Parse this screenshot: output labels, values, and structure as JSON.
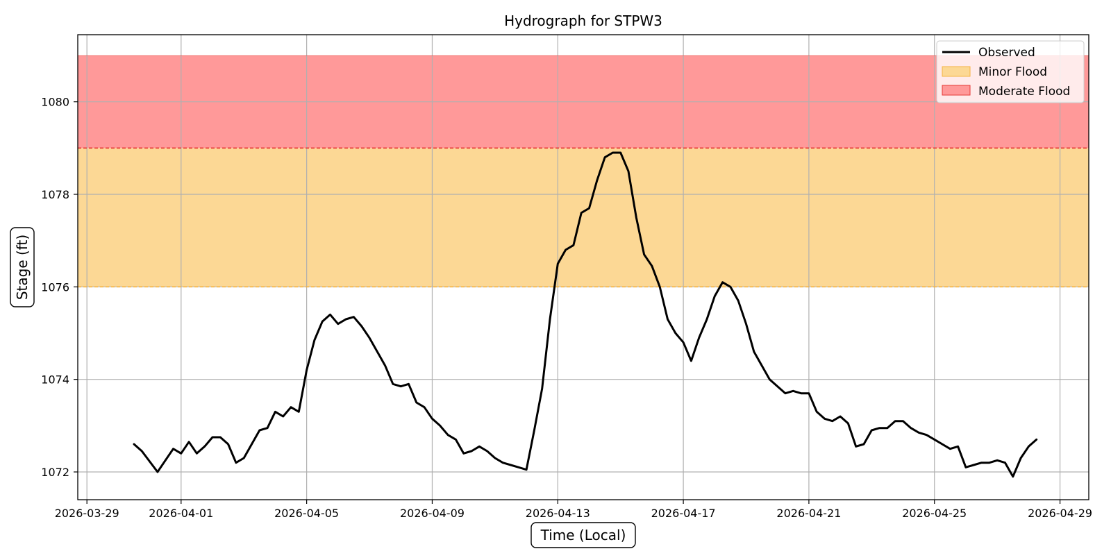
{
  "chart_data": {
    "type": "line",
    "title": "Hydrograph for STPW3",
    "xlabel": "Time (Local)",
    "ylabel": "Stage (ft)",
    "x_axis": "date",
    "xlim": [
      "2026-03-28T17:00",
      "2026-04-29T22:00"
    ],
    "ylim": [
      1071.4,
      1081.45
    ],
    "x_ticks": [
      "2026-03-29",
      "2026-04-01",
      "2026-04-05",
      "2026-04-09",
      "2026-04-13",
      "2026-04-17",
      "2026-04-21",
      "2026-04-25",
      "2026-04-29"
    ],
    "y_ticks": [
      "1072",
      "1074",
      "1076",
      "1078",
      "1080"
    ],
    "grid": true,
    "legend": {
      "position": "top-right",
      "entries": [
        "Observed",
        "Minor Flood",
        "Moderate Flood"
      ]
    },
    "bands": [
      {
        "name": "Minor Flood",
        "from": 1076,
        "to": 1079,
        "fill": "#fcd895",
        "edge": "#f5b342"
      },
      {
        "name": "Moderate Flood",
        "from": 1079,
        "to": 1081,
        "fill": "#ff9999",
        "edge": "#e53935"
      }
    ],
    "series": [
      {
        "name": "Observed",
        "color": "#000000",
        "x": [
          "2026-03-30T12:00",
          "2026-03-30T18:00",
          "2026-03-31T06:00",
          "2026-03-31T12:00",
          "2026-03-31T18:00",
          "2026-04-01T00:00",
          "2026-04-01T06:00",
          "2026-04-01T12:00",
          "2026-04-01T18:00",
          "2026-04-02T00:00",
          "2026-04-02T06:00",
          "2026-04-02T12:00",
          "2026-04-02T18:00",
          "2026-04-03T00:00",
          "2026-04-03T06:00",
          "2026-04-03T12:00",
          "2026-04-03T18:00",
          "2026-04-04T00:00",
          "2026-04-04T06:00",
          "2026-04-04T12:00",
          "2026-04-04T18:00",
          "2026-04-05T00:00",
          "2026-04-05T06:00",
          "2026-04-05T12:00",
          "2026-04-05T18:00",
          "2026-04-06T00:00",
          "2026-04-06T06:00",
          "2026-04-06T12:00",
          "2026-04-06T18:00",
          "2026-04-07T00:00",
          "2026-04-07T06:00",
          "2026-04-07T12:00",
          "2026-04-07T18:00",
          "2026-04-08T00:00",
          "2026-04-08T06:00",
          "2026-04-08T12:00",
          "2026-04-08T18:00",
          "2026-04-09T00:00",
          "2026-04-09T06:00",
          "2026-04-09T12:00",
          "2026-04-09T18:00",
          "2026-04-10T00:00",
          "2026-04-10T06:00",
          "2026-04-10T12:00",
          "2026-04-10T18:00",
          "2026-04-11T00:00",
          "2026-04-11T06:00",
          "2026-04-11T12:00",
          "2026-04-11T18:00",
          "2026-04-12T00:00",
          "2026-04-12T06:00",
          "2026-04-12T12:00",
          "2026-04-12T18:00",
          "2026-04-13T00:00",
          "2026-04-13T06:00",
          "2026-04-13T12:00",
          "2026-04-13T18:00",
          "2026-04-14T00:00",
          "2026-04-14T06:00",
          "2026-04-14T12:00",
          "2026-04-14T18:00",
          "2026-04-15T00:00",
          "2026-04-15T06:00",
          "2026-04-15T12:00",
          "2026-04-15T18:00",
          "2026-04-16T00:00",
          "2026-04-16T06:00",
          "2026-04-16T12:00",
          "2026-04-16T18:00",
          "2026-04-17T00:00",
          "2026-04-17T06:00",
          "2026-04-17T12:00",
          "2026-04-17T18:00",
          "2026-04-18T00:00",
          "2026-04-18T06:00",
          "2026-04-18T12:00",
          "2026-04-18T18:00",
          "2026-04-19T00:00",
          "2026-04-19T06:00",
          "2026-04-19T12:00",
          "2026-04-19T18:00",
          "2026-04-20T00:00",
          "2026-04-20T06:00",
          "2026-04-20T12:00",
          "2026-04-20T18:00",
          "2026-04-21T00:00",
          "2026-04-21T06:00",
          "2026-04-21T12:00",
          "2026-04-21T18:00",
          "2026-04-22T00:00",
          "2026-04-22T06:00",
          "2026-04-22T12:00",
          "2026-04-22T18:00",
          "2026-04-23T00:00",
          "2026-04-23T06:00",
          "2026-04-23T12:00",
          "2026-04-23T18:00",
          "2026-04-24T00:00",
          "2026-04-24T06:00",
          "2026-04-24T12:00",
          "2026-04-24T18:00",
          "2026-04-25T00:00",
          "2026-04-25T06:00",
          "2026-04-25T12:00",
          "2026-04-25T18:00",
          "2026-04-26T00:00",
          "2026-04-26T06:00",
          "2026-04-26T12:00",
          "2026-04-26T18:00",
          "2026-04-27T00:00",
          "2026-04-27T06:00",
          "2026-04-27T12:00",
          "2026-04-27T18:00",
          "2026-04-28T00:00",
          "2026-04-28T06:00"
        ],
        "y": [
          1072.6,
          1072.45,
          1072.0,
          1072.25,
          1072.5,
          1072.4,
          1072.65,
          1072.4,
          1072.55,
          1072.75,
          1072.75,
          1072.6,
          1072.2,
          1072.3,
          1072.6,
          1072.9,
          1072.95,
          1073.3,
          1073.2,
          1073.4,
          1073.3,
          1074.2,
          1074.85,
          1075.25,
          1075.4,
          1075.2,
          1075.3,
          1075.35,
          1075.15,
          1074.9,
          1074.6,
          1074.3,
          1073.9,
          1073.85,
          1073.9,
          1073.5,
          1073.4,
          1073.15,
          1073.0,
          1072.8,
          1072.7,
          1072.4,
          1072.45,
          1072.55,
          1072.45,
          1072.3,
          1072.2,
          1072.15,
          1072.1,
          1072.05,
          1072.9,
          1073.8,
          1075.3,
          1076.5,
          1076.8,
          1076.9,
          1077.6,
          1077.7,
          1078.3,
          1078.8,
          1078.9,
          1078.9,
          1078.5,
          1077.5,
          1076.7,
          1076.45,
          1076.0,
          1075.3,
          1075.0,
          1074.8,
          1074.4,
          1074.9,
          1075.3,
          1075.8,
          1076.1,
          1076.0,
          1075.7,
          1075.2,
          1074.6,
          1074.3,
          1074.0,
          1073.85,
          1073.7,
          1073.75,
          1073.7,
          1073.7,
          1073.3,
          1073.15,
          1073.1,
          1073.2,
          1073.05,
          1072.55,
          1072.6,
          1072.9,
          1072.95,
          1072.95,
          1073.1,
          1073.1,
          1072.95,
          1072.85,
          1072.8,
          1072.7,
          1072.6,
          1072.5,
          1072.55,
          1072.1,
          1072.15,
          1072.2,
          1072.2,
          1072.25,
          1072.2,
          1071.9,
          1072.3,
          1072.55,
          1072.7
        ]
      }
    ]
  }
}
